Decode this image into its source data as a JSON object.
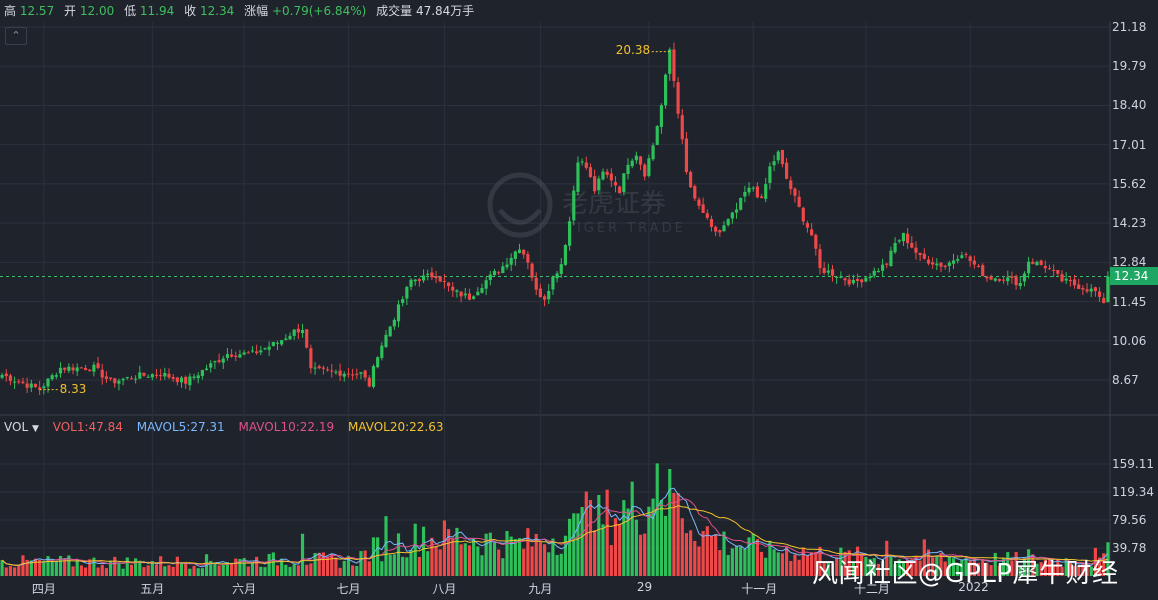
{
  "header": {
    "high_label": "高",
    "high": "12.57",
    "open_label": "开",
    "open": "12.00",
    "low_label": "低",
    "low": "11.94",
    "close_label": "收",
    "close": "12.34",
    "change_label": "涨幅",
    "change": "+0.79(+6.84%)",
    "volume_label": "成交量",
    "volume": "47.84万手"
  },
  "collapse_icon": "chevron-up-icon",
  "watermark": {
    "logo": "tiger-head-logo",
    "cn": "老虎证券",
    "en": "TIGER TRADE"
  },
  "corner_watermark": "风闻社区@GPLP犀牛财经",
  "volume_legend": {
    "vol_label": "VOL",
    "vol1": "VOL1:47.84",
    "mavol5": "MAVOL5:27.31",
    "mavol10": "MAVOL10:22.19",
    "mavol20": "MAVOL20:22.63"
  },
  "last_price_tag": "12.34",
  "colors": {
    "up": "#2ec05a",
    "down": "#f04848",
    "bg": "#1f232c",
    "grid": "#2c313c",
    "ma5": "#7ab8ff",
    "ma10": "#e0528a",
    "ma20": "#f2c230"
  },
  "chart_data": [
    {
      "type": "candlestick",
      "y_ticks": [
        "21.18",
        "19.79",
        "18.40",
        "17.01",
        "15.62",
        "14.23",
        "12.84",
        "11.45",
        "10.06",
        "8.67"
      ],
      "ylim": [
        7.6,
        21.18
      ],
      "x_labels": [
        "四月",
        "五月",
        "六月",
        "七月",
        "八月",
        "九月",
        "29",
        "十一月",
        "十二月",
        "2022"
      ],
      "annotations": {
        "high": "20.38",
        "low": "8.33",
        "last": "12.34"
      },
      "waypoints": [
        [
          0,
          8.85
        ],
        [
          6,
          8.5
        ],
        [
          9,
          8.35
        ],
        [
          14,
          9.1
        ],
        [
          22,
          9.1
        ],
        [
          26,
          8.6
        ],
        [
          32,
          8.8
        ],
        [
          38,
          8.9
        ],
        [
          44,
          8.6
        ],
        [
          48,
          9.0
        ],
        [
          54,
          9.6
        ],
        [
          60,
          9.6
        ],
        [
          66,
          10.0
        ],
        [
          70,
          10.4
        ],
        [
          72,
          10.5
        ],
        [
          74,
          9.0
        ],
        [
          86,
          8.9
        ],
        [
          88,
          8.5
        ],
        [
          90,
          9.6
        ],
        [
          94,
          10.9
        ],
        [
          98,
          12.2
        ],
        [
          104,
          12.4
        ],
        [
          108,
          11.8
        ],
        [
          112,
          11.6
        ],
        [
          116,
          12.2
        ],
        [
          120,
          12.7
        ],
        [
          124,
          13.4
        ],
        [
          126,
          12.9
        ],
        [
          128,
          11.8
        ],
        [
          130,
          11.6
        ],
        [
          132,
          12.3
        ],
        [
          134,
          12.8
        ],
        [
          136,
          14.3
        ],
        [
          138,
          16.5
        ],
        [
          140,
          16.2
        ],
        [
          142,
          15.4
        ],
        [
          144,
          16.0
        ],
        [
          146,
          15.8
        ],
        [
          148,
          15.4
        ],
        [
          150,
          16.4
        ],
        [
          152,
          16.7
        ],
        [
          154,
          16.0
        ],
        [
          156,
          17.0
        ],
        [
          158,
          18.4
        ],
        [
          160,
          20.38
        ],
        [
          162,
          18.2
        ],
        [
          164,
          16.0
        ],
        [
          166,
          15.0
        ],
        [
          168,
          14.6
        ],
        [
          170,
          14.0
        ],
        [
          172,
          13.9
        ],
        [
          174,
          14.3
        ],
        [
          176,
          14.7
        ],
        [
          178,
          15.3
        ],
        [
          180,
          15.5
        ],
        [
          182,
          15.0
        ],
        [
          184,
          16.2
        ],
        [
          186,
          16.7
        ],
        [
          188,
          15.8
        ],
        [
          190,
          15.1
        ],
        [
          192,
          14.4
        ],
        [
          194,
          13.8
        ],
        [
          196,
          12.6
        ],
        [
          200,
          12.4
        ],
        [
          204,
          12.1
        ],
        [
          208,
          12.4
        ],
        [
          212,
          12.8
        ],
        [
          214,
          13.5
        ],
        [
          216,
          13.8
        ],
        [
          220,
          13.0
        ],
        [
          226,
          12.7
        ],
        [
          230,
          13.2
        ],
        [
          232,
          12.9
        ],
        [
          236,
          12.3
        ],
        [
          240,
          12.3
        ],
        [
          244,
          12.1
        ],
        [
          246,
          12.9
        ],
        [
          250,
          12.7
        ],
        [
          254,
          12.2
        ],
        [
          258,
          12.0
        ],
        [
          262,
          11.8
        ],
        [
          263,
          11.5
        ],
        [
          264,
          11.45
        ],
        [
          265,
          12.34
        ]
      ]
    },
    {
      "type": "bar",
      "name": "VOL",
      "y_ticks": [
        "159.11",
        "119.34",
        "79.56",
        "39.78"
      ],
      "ylim": [
        0,
        181.8
      ],
      "last_value": 47.84,
      "segments": [
        [
          0,
          22
        ],
        [
          40,
          22
        ],
        [
          70,
          26
        ],
        [
          84,
          24
        ],
        [
          90,
          45
        ],
        [
          100,
          60
        ],
        [
          110,
          62
        ],
        [
          125,
          50
        ],
        [
          136,
          70
        ],
        [
          145,
          95
        ],
        [
          152,
          110
        ],
        [
          157,
          135
        ],
        [
          160,
          120
        ],
        [
          166,
          80
        ],
        [
          172,
          55
        ],
        [
          180,
          45
        ],
        [
          190,
          40
        ],
        [
          200,
          32
        ],
        [
          215,
          30
        ],
        [
          230,
          28
        ],
        [
          245,
          25
        ],
        [
          265,
          24
        ]
      ],
      "spikes": [
        [
          72,
          60
        ],
        [
          92,
          85
        ],
        [
          101,
          70
        ],
        [
          139,
          98
        ],
        [
          140,
          120
        ],
        [
          141,
          108
        ],
        [
          156,
          110
        ],
        [
          157,
          160
        ],
        [
          158,
          108
        ],
        [
          161,
          118
        ],
        [
          184,
          50
        ],
        [
          212,
          50
        ],
        [
          221,
          52
        ],
        [
          246,
          38
        ],
        [
          262,
          40
        ],
        [
          265,
          47.84
        ]
      ]
    }
  ]
}
